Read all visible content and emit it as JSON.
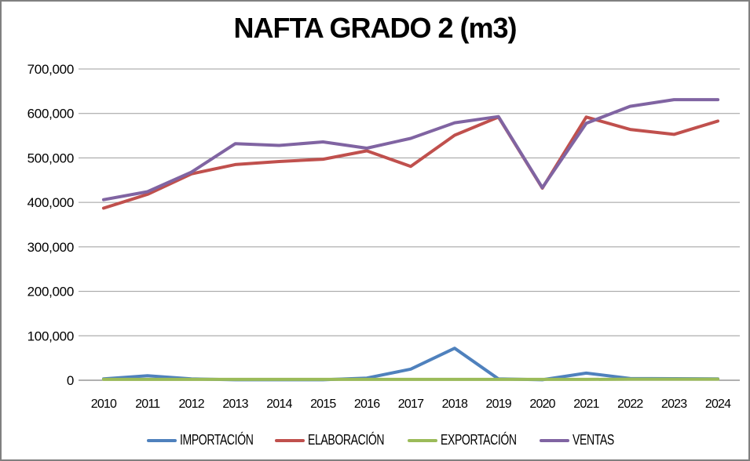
{
  "window": {
    "background": "#ffffff",
    "border_color": "#808080"
  },
  "chart_data": {
    "type": "line",
    "title": "NAFTA GRADO 2 (m3)",
    "categories": [
      "2010",
      "2011",
      "2012",
      "2013",
      "2014",
      "2015",
      "2016",
      "2017",
      "2018",
      "2019",
      "2020",
      "2021",
      "2022",
      "2023",
      "2024"
    ],
    "series": [
      {
        "name": "IMPORTACIÓN",
        "color": "#4F81BD",
        "values": [
          3000,
          10000,
          3000,
          1000,
          1000,
          1000,
          5000,
          25000,
          72000,
          3000,
          1000,
          16000,
          4000,
          3500,
          3000
        ]
      },
      {
        "name": "ELABORACIÓN",
        "color": "#C0504D",
        "values": [
          387000,
          418000,
          464000,
          485000,
          492000,
          497000,
          516000,
          481000,
          551000,
          592000,
          432000,
          592000,
          564000,
          553000,
          583000
        ]
      },
      {
        "name": "EXPORTACIÓN",
        "color": "#9BBB59",
        "values": [
          2000,
          2000,
          2000,
          2000,
          2000,
          2000,
          2000,
          2000,
          2000,
          2000,
          2000,
          2000,
          2500,
          2500,
          2500
        ]
      },
      {
        "name": "VENTAS",
        "color": "#8064A2",
        "values": [
          406000,
          424000,
          468000,
          532000,
          528000,
          536000,
          522000,
          544000,
          579000,
          593000,
          433000,
          578000,
          616000,
          631000,
          631000
        ]
      }
    ],
    "xlabel": "",
    "ylabel": "",
    "ylim": [
      0,
      700000
    ],
    "ytick_values": [
      0,
      100000,
      200000,
      300000,
      400000,
      500000,
      600000,
      700000
    ],
    "ytick_labels": [
      "0",
      "100,000",
      "200,000",
      "300,000",
      "400,000",
      "500,000",
      "600,000",
      "700,000"
    ],
    "grid": true,
    "gridline_color": "#9c9c9c",
    "axis_color": "#808080",
    "legend_position": "bottom"
  }
}
